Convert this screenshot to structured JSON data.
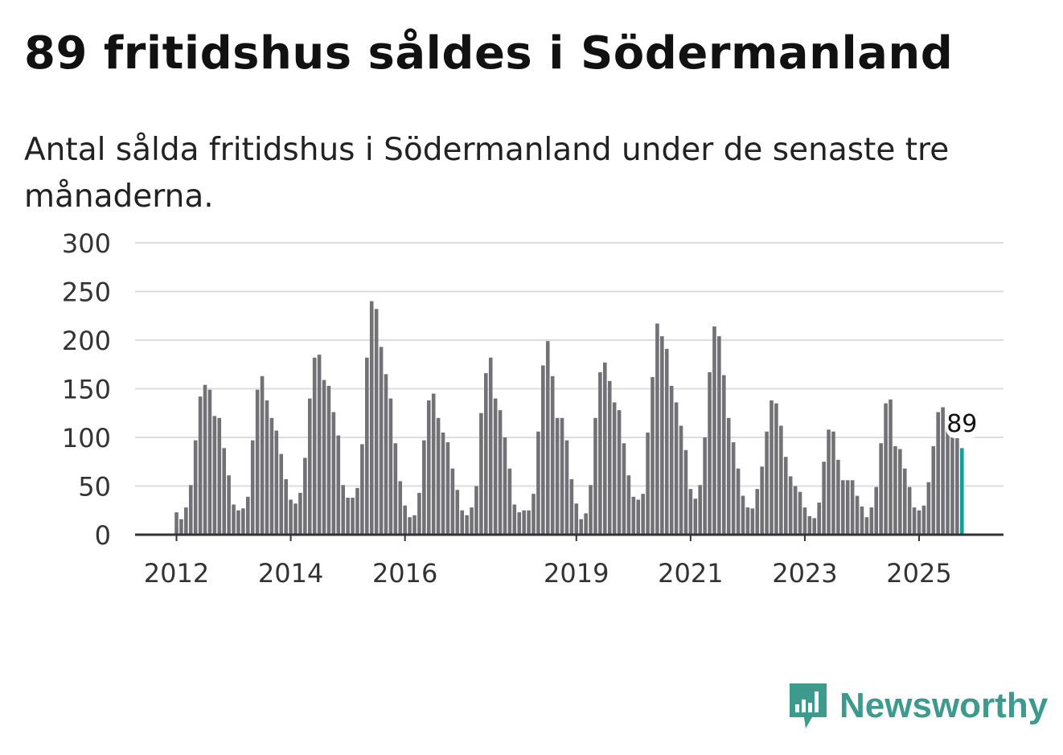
{
  "title": "89 fritidshus såldes i Södermanland",
  "subtitle": "Antal sålda fritidshus i Södermanland under de senaste tre månaderna.",
  "logo_text": "Newsworthy",
  "colors": {
    "bar": "#727176",
    "highlight": "#14a09a",
    "grid": "#dddddd",
    "axis": "#333333",
    "logo": "#3d9a8d"
  },
  "chart_data": {
    "type": "bar",
    "title": "89 fritidshus såldes i Södermanland",
    "xlabel": "",
    "ylabel": "",
    "ylim": [
      0,
      300
    ],
    "yticks": [
      0,
      50,
      100,
      150,
      200,
      250,
      300
    ],
    "grid": true,
    "start": "2012-01",
    "frequency": "monthly",
    "xtick_labels": [
      {
        "label": "2012",
        "index": 0
      },
      {
        "label": "2014",
        "index": 24
      },
      {
        "label": "2016",
        "index": 48
      },
      {
        "label": "2019",
        "index": 84
      },
      {
        "label": "2021",
        "index": 108
      },
      {
        "label": "2023",
        "index": 132
      },
      {
        "label": "2025",
        "index": 156
      }
    ],
    "values": [
      23,
      16,
      28,
      51,
      97,
      142,
      154,
      149,
      122,
      120,
      89,
      61,
      31,
      25,
      27,
      39,
      97,
      149,
      163,
      138,
      120,
      107,
      83,
      57,
      36,
      32,
      43,
      79,
      140,
      182,
      185,
      159,
      153,
      126,
      102,
      51,
      38,
      38,
      48,
      93,
      182,
      240,
      232,
      193,
      165,
      140,
      94,
      55,
      30,
      18,
      20,
      43,
      97,
      138,
      145,
      120,
      105,
      95,
      68,
      46,
      25,
      20,
      28,
      50,
      125,
      166,
      182,
      140,
      128,
      100,
      68,
      31,
      23,
      25,
      25,
      42,
      106,
      174,
      199,
      163,
      120,
      120,
      97,
      57,
      32,
      16,
      22,
      51,
      120,
      167,
      177,
      158,
      136,
      128,
      94,
      61,
      39,
      36,
      42,
      105,
      162,
      217,
      204,
      191,
      153,
      136,
      112,
      87,
      47,
      37,
      51,
      100,
      167,
      214,
      204,
      164,
      120,
      95,
      68,
      40,
      28,
      27,
      47,
      70,
      106,
      138,
      135,
      112,
      80,
      60,
      50,
      44,
      28,
      19,
      17,
      33,
      75,
      108,
      106,
      77,
      56,
      56,
      56,
      40,
      29,
      18,
      28,
      49,
      94,
      135,
      139,
      91,
      88,
      68,
      49,
      28,
      25,
      30,
      54,
      91,
      126,
      131,
      110,
      100,
      100,
      89
    ],
    "highlight_last": true,
    "annotation": "89"
  }
}
